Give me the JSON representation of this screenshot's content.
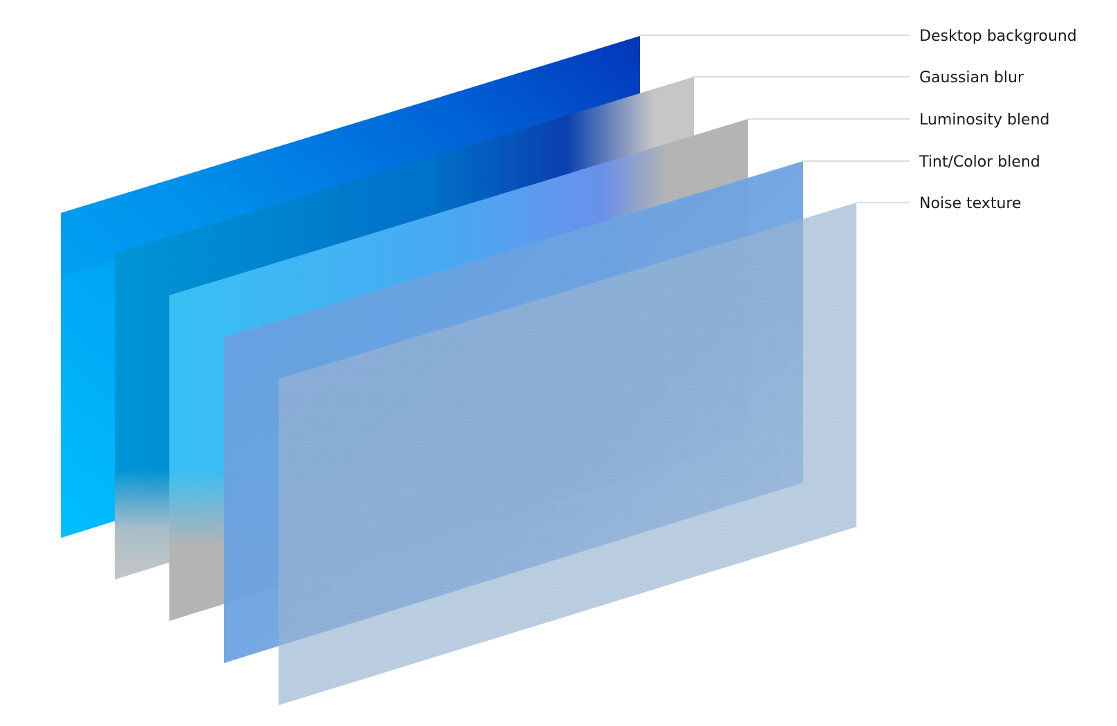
{
  "layers": [
    {
      "id": "desktop-background",
      "label": "Desktop background"
    },
    {
      "id": "gaussian-blur",
      "label": "Gaussian blur"
    },
    {
      "id": "luminosity-blend",
      "label": "Luminosity blend"
    },
    {
      "id": "tint-color-blend",
      "label": "Tint/Color blend"
    },
    {
      "id": "noise-texture",
      "label": "Noise texture"
    }
  ],
  "colors": {
    "background": "#ffffff",
    "desktop_dark_blue": "#0536b8",
    "desktop_light_blue": "#00b7fb",
    "blur_grey": "#c6c6c6",
    "luminosity_grey": "#b4b4b4",
    "tint_light_blue": "#cfe4fb",
    "noise_grey": "#e4e4e4",
    "leader_line": "#c8c8c8",
    "label_text": "#1a1a1a"
  }
}
